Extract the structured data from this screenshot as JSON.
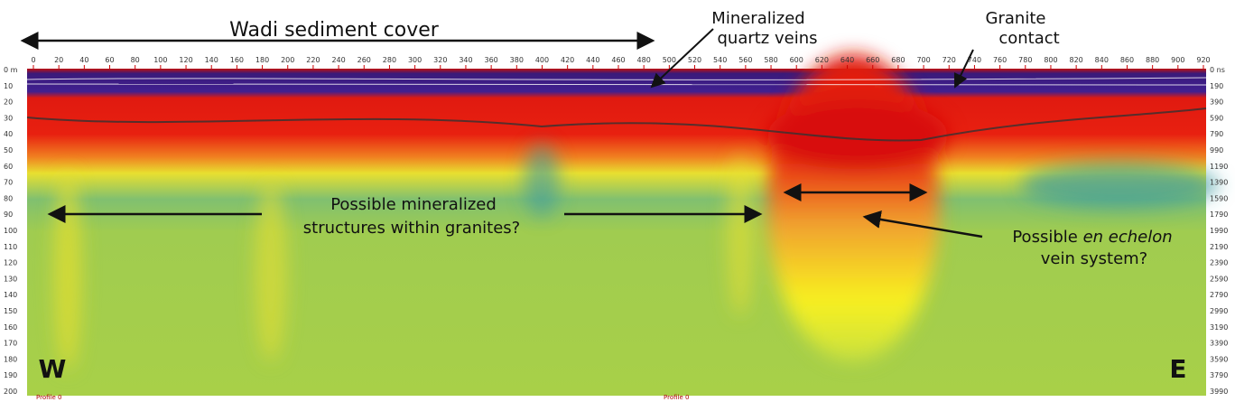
{
  "figure": {
    "top_axis": {
      "ticks": [
        0,
        20,
        40,
        60,
        80,
        100,
        120,
        140,
        160,
        180,
        200,
        220,
        240,
        260,
        280,
        300,
        320,
        340,
        360,
        380,
        400,
        420,
        440,
        460,
        480,
        500,
        520,
        540,
        560,
        580,
        600,
        620,
        640,
        660,
        680,
        700,
        720,
        740,
        760,
        780,
        800,
        820,
        840,
        860,
        880,
        900,
        920
      ]
    },
    "left_axis": {
      "labels": [
        "0 m",
        10,
        20,
        30,
        40,
        50,
        60,
        70,
        80,
        90,
        100,
        110,
        120,
        130,
        140,
        150,
        160,
        170,
        180,
        190,
        200
      ]
    },
    "right_axis": {
      "labels": [
        "0 ns",
        190,
        390,
        590,
        790,
        990,
        1190,
        1390,
        1590,
        1790,
        1990,
        2190,
        2390,
        2590,
        2790,
        2990,
        3190,
        3390,
        3590,
        3790,
        3990
      ]
    },
    "profile_labels": [
      "Profile 0",
      "Profile 0"
    ],
    "annotations": {
      "wadi": "Wadi sediment cover",
      "veins": [
        "Mineralized",
        "quartz veins"
      ],
      "granite": [
        "Granite",
        "contact"
      ],
      "structures": [
        "Possible mineralized",
        "structures within granites?"
      ],
      "echelon": {
        "line1_pre": "Possible ",
        "line1_italic": "en echelon",
        "line2": "vein system?"
      },
      "west": "W",
      "east": "E"
    }
  }
}
